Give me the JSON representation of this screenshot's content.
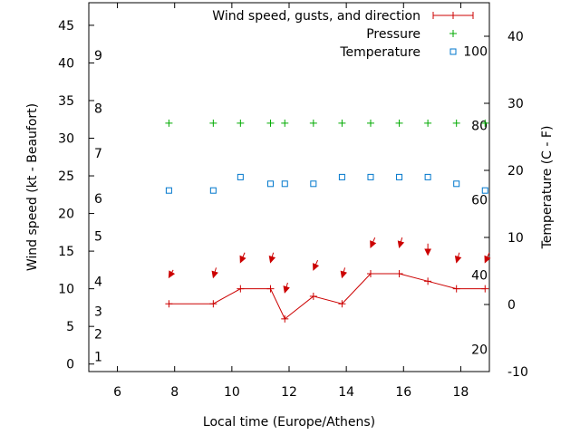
{
  "chart_data": {
    "type": "line",
    "title": "",
    "xlabel": "Local time (Europe/Athens)",
    "ylabel_left": "Wind speed (kt - Beaufort)",
    "ylabel_right": "Temperature (C - F)",
    "xlim": [
      5,
      19
    ],
    "ylim_left": [
      -1,
      48
    ],
    "ylim_right": [
      -10,
      45
    ],
    "x_ticks": [
      "6",
      "8",
      "10",
      "12",
      "14",
      "16",
      "18"
    ],
    "y_left_ticks": [
      "0",
      "5",
      "10",
      "15",
      "20",
      "25",
      "30",
      "35",
      "40",
      "45"
    ],
    "y_right_ticks": [
      "-10",
      "0",
      "10",
      "20",
      "30",
      "40"
    ],
    "beaufort_labels": [
      {
        "label": "1",
        "y": 1
      },
      {
        "label": "2",
        "y": 4
      },
      {
        "label": "3",
        "y": 7
      },
      {
        "label": "4",
        "y": 11
      },
      {
        "label": "5",
        "y": 17
      },
      {
        "label": "6",
        "y": 22
      },
      {
        "label": "7",
        "y": 28
      },
      {
        "label": "8",
        "y": 34
      },
      {
        "label": "9",
        "y": 41
      }
    ],
    "fahrenheit_labels": [
      {
        "label": "20",
        "y": -6.7
      },
      {
        "label": "40",
        "y": 4.4
      },
      {
        "label": "60",
        "y": 15.6
      },
      {
        "label": "80",
        "y": 26.7
      },
      {
        "label": "100",
        "y": 37.8
      }
    ],
    "legend_position": "top-right",
    "series": [
      {
        "name": "Wind speed, gusts, and direction",
        "axis": "left",
        "color": "#cc0000",
        "x": [
          7.8,
          9.35,
          10.3,
          11.35,
          11.85,
          12.85,
          13.85,
          14.85,
          15.85,
          16.85,
          17.85,
          18.85
        ],
        "y": [
          8,
          8,
          10,
          10,
          6,
          9,
          8,
          12,
          12,
          11,
          10,
          10
        ]
      },
      {
        "name": "Pressure",
        "axis": "left",
        "color": "#00aa00",
        "x": [
          7.8,
          9.35,
          10.3,
          11.35,
          11.85,
          12.85,
          13.85,
          14.85,
          15.85,
          16.85,
          17.85,
          18.85
        ],
        "y": [
          32,
          32,
          32,
          32,
          32,
          32,
          32,
          32,
          32,
          32,
          32,
          32
        ]
      },
      {
        "name": "Temperature",
        "axis": "right",
        "color": "#0077cc",
        "x": [
          7.8,
          9.35,
          10.3,
          11.35,
          11.85,
          12.85,
          13.85,
          14.85,
          15.85,
          16.85,
          17.85,
          18.85
        ],
        "y": [
          17,
          17,
          19,
          18,
          18,
          18,
          19,
          19,
          19,
          19,
          18,
          17
        ]
      }
    ],
    "wind_direction_arrows": {
      "color": "#cc0000",
      "x": [
        7.8,
        9.35,
        10.3,
        11.35,
        11.85,
        12.85,
        13.85,
        14.85,
        15.85,
        16.85,
        17.85,
        18.85
      ],
      "y": [
        11.5,
        11.5,
        13.5,
        13.5,
        9.5,
        12.5,
        11.5,
        15.5,
        15.5,
        14.5,
        13.5,
        13.5
      ],
      "dx": [
        -0.15,
        -0.1,
        -0.15,
        -0.1,
        -0.1,
        -0.15,
        -0.1,
        -0.15,
        -0.1,
        0,
        -0.1,
        -0.15
      ],
      "dy": [
        1,
        1.3,
        1.3,
        1.3,
        1.3,
        1.3,
        1.3,
        1.3,
        1.3,
        1.5,
        1.3,
        1.3
      ]
    }
  }
}
